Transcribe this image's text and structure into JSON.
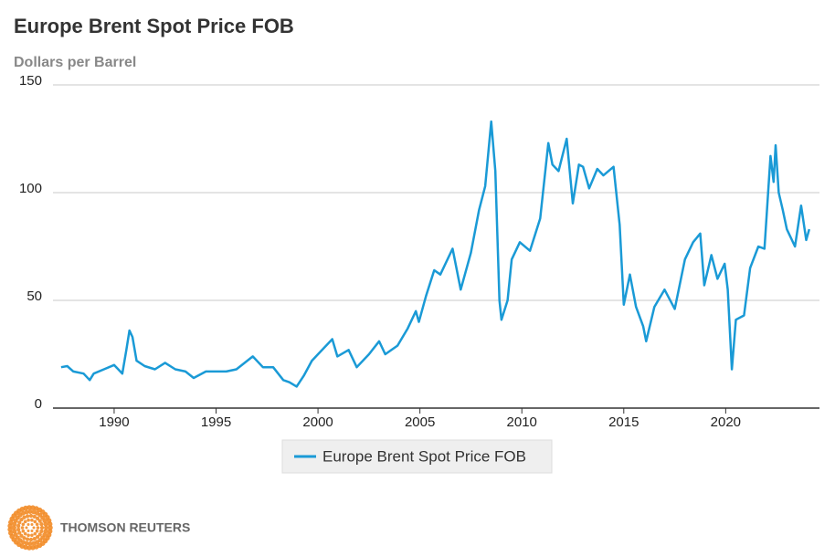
{
  "chart_data": {
    "type": "line",
    "title": "Europe Brent Spot Price FOB",
    "subtitle": "Dollars per Barrel",
    "x": [
      1987.4,
      1987.7,
      1988.0,
      1988.5,
      1988.8,
      1989.0,
      1989.5,
      1990.0,
      1990.4,
      1990.6,
      1990.75,
      1990.9,
      1991.1,
      1991.5,
      1992.0,
      1992.5,
      1993.0,
      1993.5,
      1993.9,
      1994.5,
      1995.0,
      1995.5,
      1996.0,
      1996.8,
      1997.3,
      1997.8,
      1998.3,
      1998.6,
      1998.95,
      1999.3,
      1999.7,
      2000.0,
      2000.7,
      2000.95,
      2001.5,
      2001.9,
      2002.5,
      2003.0,
      2003.3,
      2003.9,
      2004.4,
      2004.8,
      2004.95,
      2005.3,
      2005.7,
      2006.0,
      2006.6,
      2007.0,
      2007.5,
      2007.9,
      2008.2,
      2008.5,
      2008.7,
      2008.9,
      2009.0,
      2009.3,
      2009.5,
      2009.9,
      2010.4,
      2010.9,
      2011.3,
      2011.5,
      2011.8,
      2012.2,
      2012.5,
      2012.8,
      2013.0,
      2013.3,
      2013.7,
      2014.0,
      2014.5,
      2014.8,
      2015.0,
      2015.3,
      2015.6,
      2015.95,
      2016.1,
      2016.5,
      2017.0,
      2017.5,
      2018.0,
      2018.4,
      2018.75,
      2018.95,
      2019.3,
      2019.6,
      2019.95,
      2020.1,
      2020.3,
      2020.5,
      2020.9,
      2021.2,
      2021.6,
      2021.9,
      2022.2,
      2022.35,
      2022.45,
      2022.6,
      2022.8,
      2023.0,
      2023.4,
      2023.7,
      2023.95,
      2024.1
    ],
    "series": [
      {
        "name": "Europe Brent Spot Price FOB",
        "color": "#1a9ad6",
        "values": [
          19,
          19.5,
          17,
          16,
          13,
          16,
          18,
          20,
          16,
          27,
          36,
          33,
          22,
          19.5,
          18,
          21,
          18,
          17,
          14,
          17,
          17,
          17,
          18,
          24,
          19,
          19,
          13,
          12,
          10,
          15,
          22,
          25,
          32,
          24,
          27,
          19,
          25,
          31,
          25,
          29,
          37,
          45,
          40,
          52,
          64,
          62,
          74,
          55,
          72,
          92,
          103,
          133,
          110,
          50,
          41,
          50,
          69,
          77,
          73,
          88,
          123,
          113,
          110,
          125,
          95,
          113,
          112,
          102,
          111,
          108,
          112,
          85,
          48,
          62,
          47,
          38,
          31,
          47,
          55,
          46,
          69,
          77,
          81,
          57,
          71,
          60,
          67,
          55,
          18,
          41,
          43,
          65,
          75,
          74,
          117,
          105,
          122,
          100,
          92,
          83,
          75,
          94,
          78,
          83
        ]
      }
    ],
    "xlim": [
      1987,
      2024.6
    ],
    "ylim": [
      0,
      150
    ],
    "xticks": [
      1990,
      1995,
      2000,
      2005,
      2010,
      2015,
      2020
    ],
    "yticks": [
      0,
      50,
      100,
      150
    ],
    "grid": true,
    "legend": "bottom"
  },
  "footer": {
    "brand": "THOMSON REUTERS"
  }
}
